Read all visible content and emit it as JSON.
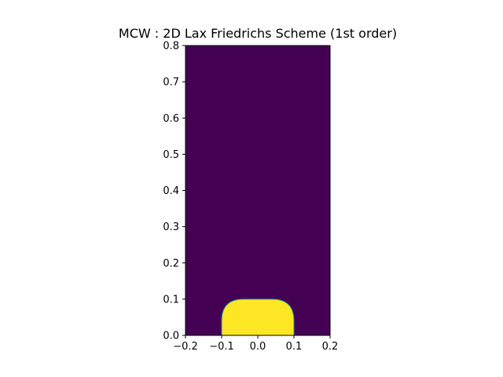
{
  "chart_data": {
    "type": "heatmap",
    "title": "MCW : 2D Lax Friedrichs Scheme (1st order)",
    "xlabel": "",
    "ylabel": "",
    "xlim": [
      -0.2,
      0.2
    ],
    "ylim": [
      0.0,
      0.8
    ],
    "x_ticks": [
      -0.2,
      -0.1,
      0.0,
      0.1,
      0.2
    ],
    "x_tick_labels": [
      "−0.2",
      "−0.1",
      "0.0",
      "0.1",
      "0.2"
    ],
    "y_ticks": [
      0.0,
      0.1,
      0.2,
      0.3,
      0.4,
      0.5,
      0.6,
      0.7,
      0.8
    ],
    "y_tick_labels": [
      "0.0",
      "0.1",
      "0.2",
      "0.3",
      "0.4",
      "0.5",
      "0.6",
      "0.7",
      "0.8"
    ],
    "grid": false,
    "colormap": "viridis",
    "background_value_color": "#440154",
    "region_value_color": "#fde725",
    "region_edge_color": "#21918c",
    "region": {
      "shape": "half-disk with rounded corners",
      "x_range": [
        -0.1,
        0.1
      ],
      "y_range": [
        0.0,
        0.1
      ],
      "corner_radius": 0.06
    }
  }
}
